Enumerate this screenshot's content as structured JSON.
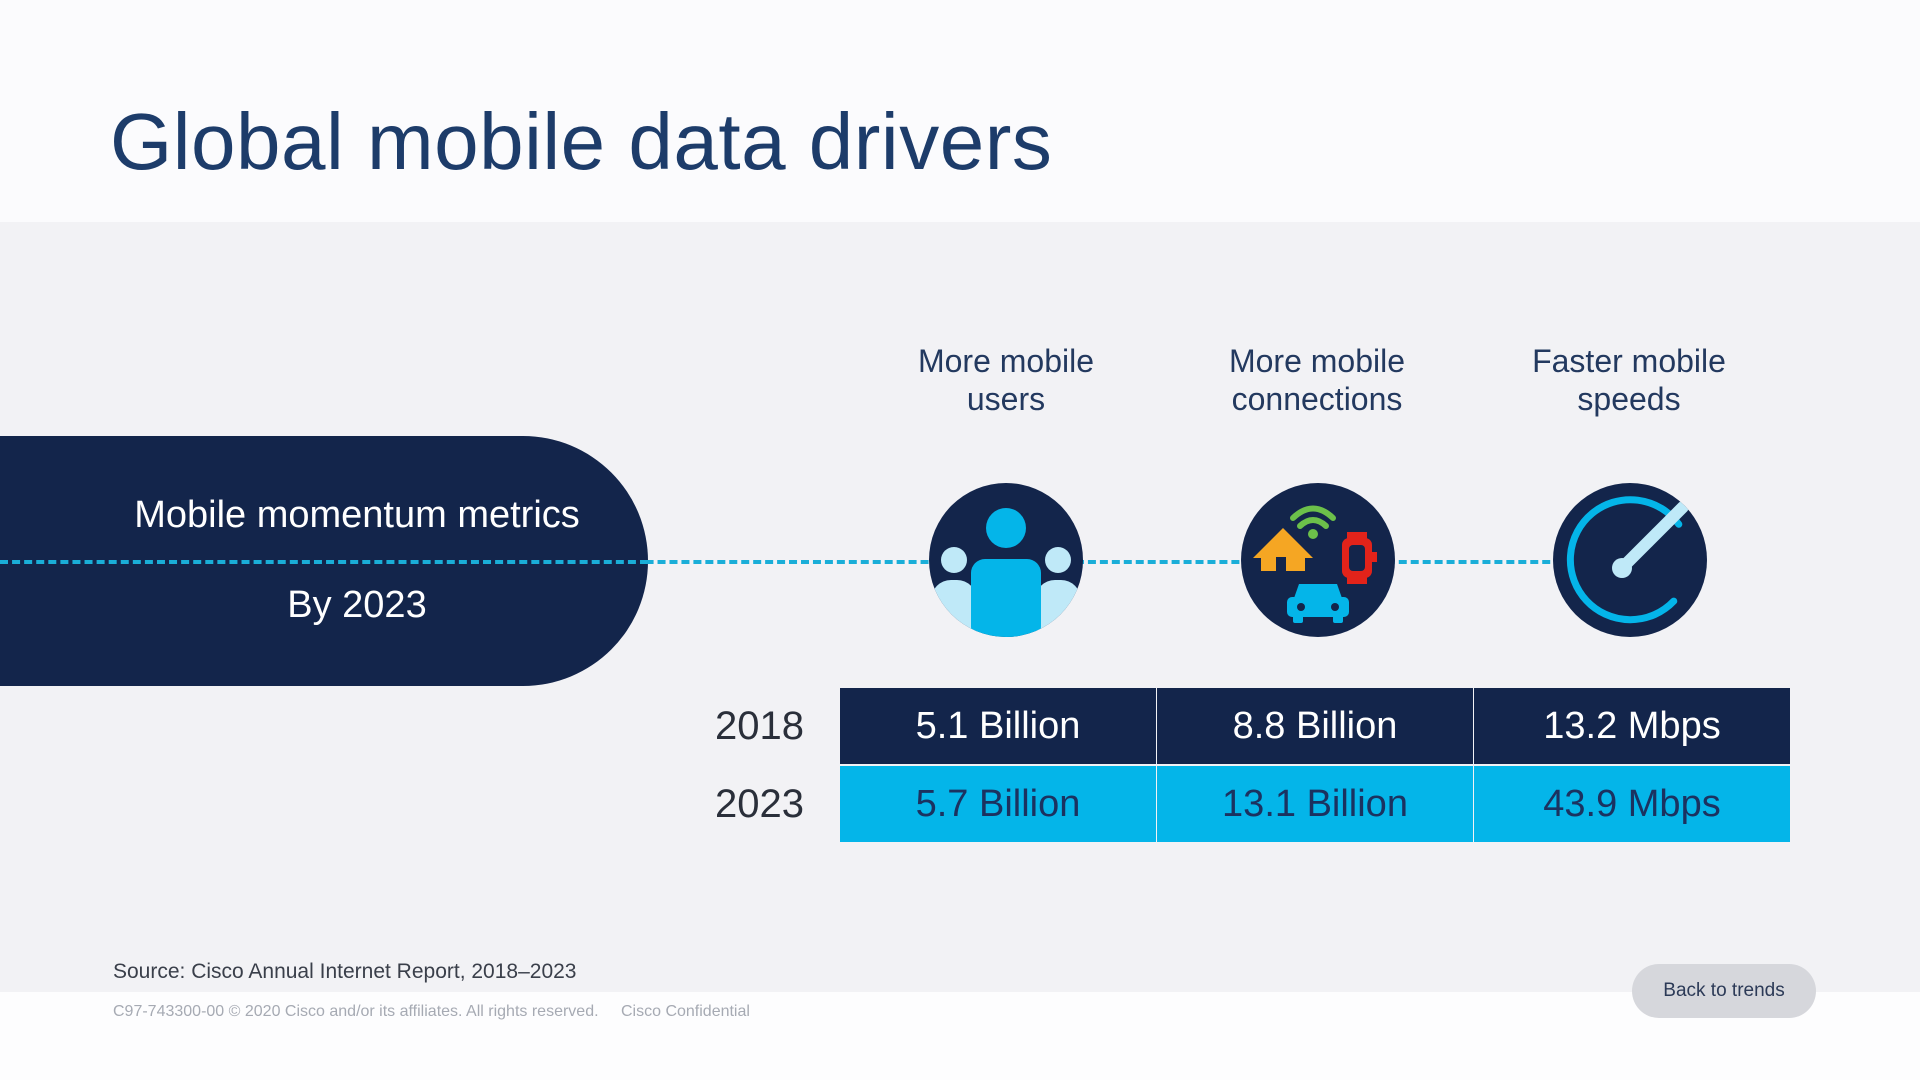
{
  "title": "Global mobile data drivers",
  "pill": {
    "title": "Mobile momentum metrics",
    "subtitle": "By 2023"
  },
  "drivers": [
    {
      "label_line1": "More mobile",
      "label_line2": "users",
      "icon": "users-icon"
    },
    {
      "label_line1": "More mobile",
      "label_line2": "connections",
      "icon": "connected-devices-icon"
    },
    {
      "label_line1": "Faster mobile",
      "label_line2": "speeds",
      "icon": "speedometer-icon"
    }
  ],
  "table": {
    "row_labels": [
      "2018",
      "2023"
    ],
    "rows": [
      [
        "5.1 Billion",
        "8.8 Billion",
        "13.2 Mbps"
      ],
      [
        "5.7 Billion",
        "13.1 Billion",
        "43.9 Mbps"
      ]
    ]
  },
  "source": "Source: Cisco Annual Internet Report, 2018–2023",
  "legal": {
    "copyright": "C97-743300-00 © 2020  Cisco and/or its affiliates. All rights reserved.",
    "confidential": "Cisco Confidential"
  },
  "back_button": "Back to trends",
  "colors": {
    "navy": "#13254b",
    "cyan": "#04b5e9",
    "title_blue": "#1d3c6a",
    "house": "#f5a623",
    "wifi": "#6cc04a",
    "watch": "#e2231a"
  }
}
